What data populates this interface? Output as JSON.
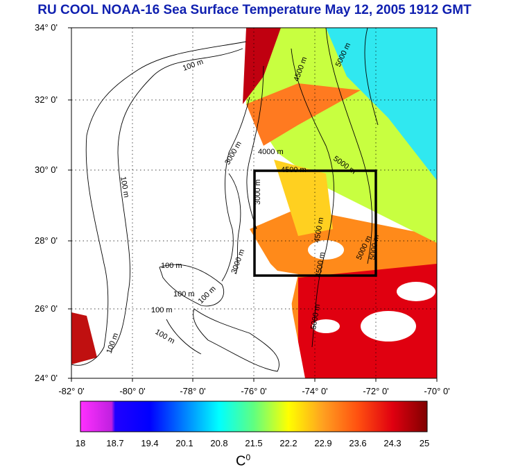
{
  "title": "RU COOL  NOAA-16 Sea Surface Temperature May 12, 2005 1912 GMT",
  "map": {
    "lat_labels": [
      "34° 0'",
      "32° 0'",
      "30° 0'",
      "28° 0'",
      "26° 0'",
      "24° 0'"
    ],
    "lon_labels": [
      "-82° 0'",
      "-80° 0'",
      "-78° 0'",
      "-76° 0'",
      "-74° 0'",
      "-72° 0'",
      "-70° 0'"
    ],
    "lat_range": [
      24,
      34
    ],
    "lon_range": [
      -82,
      -70
    ],
    "grid": "dotted",
    "study_box": {
      "lon": [
        -76,
        -72
      ],
      "lat": [
        27,
        30
      ]
    },
    "contour_labels": [
      "100 m",
      "100 m",
      "100 m",
      "100 m",
      "100 m",
      "100 m",
      "100 m",
      "100 m",
      "3000 m",
      "3000 m",
      "3000 m",
      "4000 m",
      "4500 m",
      "4500 m",
      "4500 m",
      "4500 m",
      "5000 m",
      "5000 m",
      "5000 m",
      "5000 m",
      "5000 m"
    ],
    "land_color": "#ffffff",
    "cloud_color": "#ffffff"
  },
  "colorbar": {
    "min": 18,
    "max": 25,
    "ticks": [
      "18",
      "18.7",
      "19.4",
      "20.1",
      "20.8",
      "21.5",
      "22.2",
      "22.9",
      "23.6",
      "24.3",
      "25"
    ],
    "unit": "C",
    "unit_sup": "0",
    "colors": [
      "#ff30ff",
      "#c020e0",
      "#0000ff",
      "#0080ff",
      "#00ffff",
      "#60ff80",
      "#ffff00",
      "#ffa020",
      "#ff5010",
      "#e00010",
      "#800000"
    ]
  }
}
